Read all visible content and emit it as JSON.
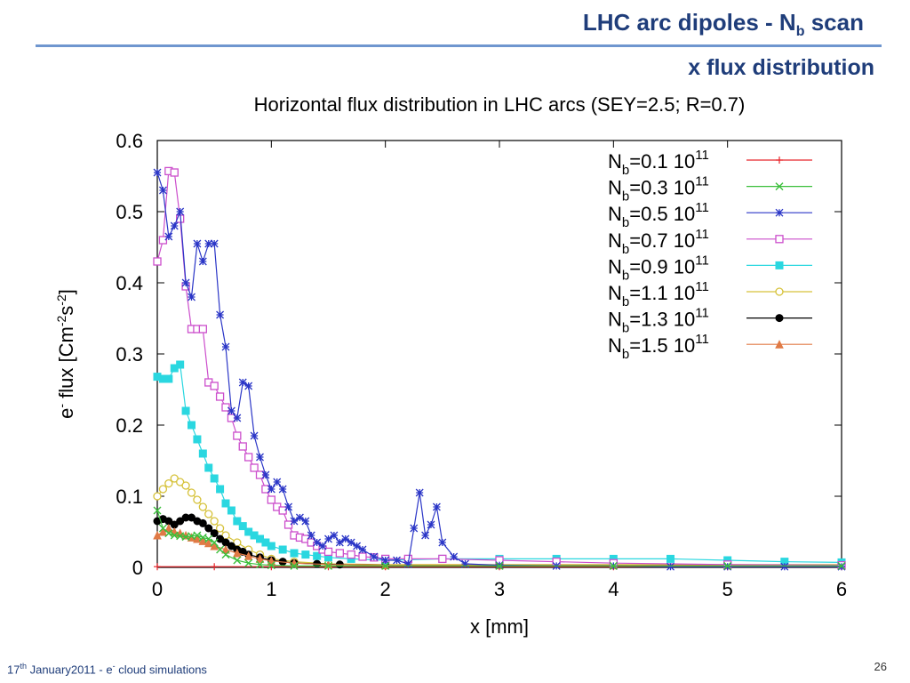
{
  "slide": {
    "title_main": "LHC arc dipoles - N",
    "title_sub": "b",
    "title_end": " scan",
    "subtitle": "x flux distribution",
    "footer_pre": "17",
    "footer_sup": "th",
    "footer_mid": " January2011  -  e",
    "footer_sup2": "-",
    "footer_end": " cloud simulations",
    "page_number": "26"
  },
  "chart_data": {
    "type": "line",
    "title": "Horizontal flux distribution in LHC arcs (SEY=2.5; R=0.7)",
    "xlabel": "x [mm]",
    "ylabel": "e- flux [Cm-2s-2]",
    "xlim": [
      0,
      6
    ],
    "ylim": [
      0,
      0.6
    ],
    "xticks": [
      "0",
      "1",
      "2",
      "3",
      "4",
      "5",
      "6"
    ],
    "yticks": [
      "0",
      "0.1",
      "0.2",
      "0.3",
      "0.4",
      "0.5",
      "0.6"
    ],
    "legend_position": "top-right",
    "series": [
      {
        "name": "Nb=0.1 10^11",
        "label_main": "N",
        "label_sub": "b",
        "label_val": "=0.1 10",
        "label_exp": "11",
        "color": "#e8242a",
        "marker": "plus",
        "x": [
          0,
          0.5,
          1.0,
          1.5,
          2.0,
          3.0,
          4.0,
          5.0,
          6.0
        ],
        "values": [
          0.001,
          0.001,
          0.001,
          0.001,
          0.001,
          0.001,
          0.001,
          0.001,
          0.001
        ]
      },
      {
        "name": "Nb=0.3 10^11",
        "label_main": "N",
        "label_sub": "b",
        "label_val": "=0.3 10",
        "label_exp": "11",
        "color": "#3cbf3c",
        "marker": "x",
        "x": [
          0,
          0.05,
          0.1,
          0.15,
          0.2,
          0.25,
          0.3,
          0.35,
          0.4,
          0.45,
          0.5,
          0.55,
          0.6,
          0.7,
          0.8,
          0.9,
          1.0,
          1.2,
          1.5,
          2.0,
          3.0,
          4.0,
          5.0,
          6.0
        ],
        "values": [
          0.08,
          0.055,
          0.048,
          0.045,
          0.044,
          0.043,
          0.044,
          0.045,
          0.042,
          0.04,
          0.035,
          0.025,
          0.018,
          0.01,
          0.006,
          0.004,
          0.003,
          0.002,
          0.002,
          0.002,
          0.002,
          0.002,
          0.002,
          0.002
        ]
      },
      {
        "name": "Nb=0.5 10^11",
        "label_main": "N",
        "label_sub": "b",
        "label_val": "=0.5 10",
        "label_exp": "11",
        "color": "#2b36c7",
        "marker": "star",
        "x": [
          0,
          0.05,
          0.1,
          0.15,
          0.2,
          0.25,
          0.3,
          0.35,
          0.4,
          0.45,
          0.5,
          0.55,
          0.6,
          0.65,
          0.7,
          0.75,
          0.8,
          0.85,
          0.9,
          0.95,
          1.0,
          1.05,
          1.1,
          1.15,
          1.2,
          1.25,
          1.3,
          1.35,
          1.4,
          1.45,
          1.5,
          1.55,
          1.6,
          1.65,
          1.7,
          1.75,
          1.8,
          1.9,
          2.0,
          2.1,
          2.2,
          2.25,
          2.3,
          2.35,
          2.4,
          2.45,
          2.5,
          2.6,
          2.7,
          3.0,
          3.5,
          4.0,
          4.5,
          5.0,
          5.5,
          6.0
        ],
        "values": [
          0.555,
          0.53,
          0.465,
          0.48,
          0.5,
          0.4,
          0.38,
          0.455,
          0.43,
          0.455,
          0.455,
          0.355,
          0.31,
          0.22,
          0.21,
          0.26,
          0.255,
          0.185,
          0.155,
          0.13,
          0.11,
          0.12,
          0.11,
          0.085,
          0.065,
          0.07,
          0.065,
          0.045,
          0.035,
          0.03,
          0.04,
          0.045,
          0.035,
          0.04,
          0.035,
          0.03,
          0.025,
          0.015,
          0.01,
          0.01,
          0.005,
          0.055,
          0.105,
          0.045,
          0.06,
          0.085,
          0.035,
          0.015,
          0.005,
          0.003,
          0.002,
          0.002,
          0.001,
          0.001,
          0.001,
          0.001
        ]
      },
      {
        "name": "Nb=0.7 10^11",
        "label_main": "N",
        "label_sub": "b",
        "label_val": "=0.7 10",
        "label_exp": "11",
        "color": "#cc4fcc",
        "marker": "square-open",
        "x": [
          0,
          0.05,
          0.1,
          0.15,
          0.2,
          0.25,
          0.3,
          0.35,
          0.4,
          0.45,
          0.5,
          0.55,
          0.6,
          0.65,
          0.7,
          0.75,
          0.8,
          0.85,
          0.9,
          0.95,
          1.0,
          1.05,
          1.1,
          1.15,
          1.2,
          1.25,
          1.3,
          1.35,
          1.4,
          1.45,
          1.5,
          1.6,
          1.7,
          1.8,
          1.9,
          2.0,
          2.2,
          2.5,
          3.0,
          3.5,
          4.0,
          5.0,
          6.0
        ],
        "values": [
          0.43,
          0.46,
          0.557,
          0.555,
          0.49,
          0.395,
          0.335,
          0.335,
          0.335,
          0.26,
          0.255,
          0.24,
          0.225,
          0.21,
          0.185,
          0.17,
          0.155,
          0.14,
          0.13,
          0.11,
          0.095,
          0.085,
          0.08,
          0.06,
          0.045,
          0.042,
          0.04,
          0.035,
          0.03,
          0.025,
          0.022,
          0.02,
          0.018,
          0.015,
          0.014,
          0.012,
          0.012,
          0.012,
          0.01,
          0.008,
          0.006,
          0.004,
          0.003
        ]
      },
      {
        "name": "Nb=0.9 10^11",
        "label_main": "N",
        "label_sub": "b",
        "label_val": "=0.9 10",
        "label_exp": "11",
        "color": "#2ad7e0",
        "marker": "square-filled",
        "x": [
          0,
          0.05,
          0.1,
          0.15,
          0.2,
          0.25,
          0.3,
          0.35,
          0.4,
          0.45,
          0.5,
          0.55,
          0.6,
          0.65,
          0.7,
          0.75,
          0.8,
          0.85,
          0.9,
          0.95,
          1.0,
          1.1,
          1.2,
          1.3,
          1.4,
          1.5,
          1.7,
          2.0,
          2.5,
          3.0,
          3.5,
          4.0,
          4.5,
          5.0,
          5.5,
          6.0
        ],
        "values": [
          0.268,
          0.265,
          0.265,
          0.28,
          0.285,
          0.22,
          0.2,
          0.18,
          0.16,
          0.14,
          0.125,
          0.11,
          0.09,
          0.08,
          0.065,
          0.058,
          0.05,
          0.045,
          0.04,
          0.035,
          0.03,
          0.025,
          0.02,
          0.018,
          0.016,
          0.014,
          0.012,
          0.01,
          0.012,
          0.012,
          0.012,
          0.012,
          0.012,
          0.01,
          0.008,
          0.007
        ]
      },
      {
        "name": "Nb=1.1 10^11",
        "label_main": "N",
        "label_sub": "b",
        "label_val": "=1.1 10",
        "label_exp": "11",
        "color": "#d6c23a",
        "marker": "circle-open",
        "x": [
          0,
          0.05,
          0.1,
          0.15,
          0.2,
          0.25,
          0.3,
          0.35,
          0.4,
          0.45,
          0.5,
          0.55,
          0.6,
          0.7,
          0.8,
          0.9,
          1.0,
          1.2,
          1.5,
          2.0,
          3.0,
          4.0,
          5.0,
          6.0
        ],
        "values": [
          0.1,
          0.11,
          0.118,
          0.125,
          0.12,
          0.115,
          0.105,
          0.095,
          0.085,
          0.075,
          0.065,
          0.055,
          0.045,
          0.035,
          0.025,
          0.018,
          0.012,
          0.008,
          0.005,
          0.004,
          0.004,
          0.004,
          0.004,
          0.004
        ]
      },
      {
        "name": "Nb=1.3 10^11",
        "label_main": "N",
        "label_sub": "b",
        "label_val": "=1.3 10",
        "label_exp": "11",
        "color": "#000000",
        "marker": "circle-filled",
        "x": [
          0,
          0.05,
          0.1,
          0.15,
          0.2,
          0.25,
          0.3,
          0.35,
          0.4,
          0.45,
          0.5,
          0.55,
          0.6,
          0.65,
          0.7,
          0.75,
          0.8,
          0.9,
          1.0,
          1.1,
          1.2,
          1.4,
          1.6,
          2.0,
          3.0,
          4.0,
          5.0,
          6.0
        ],
        "values": [
          0.065,
          0.068,
          0.065,
          0.06,
          0.065,
          0.07,
          0.07,
          0.065,
          0.062,
          0.055,
          0.048,
          0.04,
          0.035,
          0.03,
          0.025,
          0.022,
          0.018,
          0.014,
          0.01,
          0.008,
          0.006,
          0.005,
          0.004,
          0.003,
          0.003,
          0.003,
          0.003,
          0.003
        ]
      },
      {
        "name": "Nb=1.5 10^11",
        "label_main": "N",
        "label_sub": "b",
        "label_val": "=1.5 10",
        "label_exp": "11",
        "color": "#e07a45",
        "marker": "triangle",
        "x": [
          0,
          0.05,
          0.1,
          0.15,
          0.2,
          0.25,
          0.3,
          0.35,
          0.4,
          0.45,
          0.5,
          0.6,
          0.7,
          0.8,
          0.9,
          1.0,
          1.2,
          1.5,
          2.0,
          3.0,
          4.0,
          5.0,
          6.0
        ],
        "values": [
          0.045,
          0.05,
          0.055,
          0.05,
          0.048,
          0.045,
          0.042,
          0.04,
          0.037,
          0.034,
          0.03,
          0.025,
          0.02,
          0.016,
          0.012,
          0.009,
          0.006,
          0.004,
          0.003,
          0.003,
          0.003,
          0.003,
          0.003
        ]
      }
    ]
  }
}
